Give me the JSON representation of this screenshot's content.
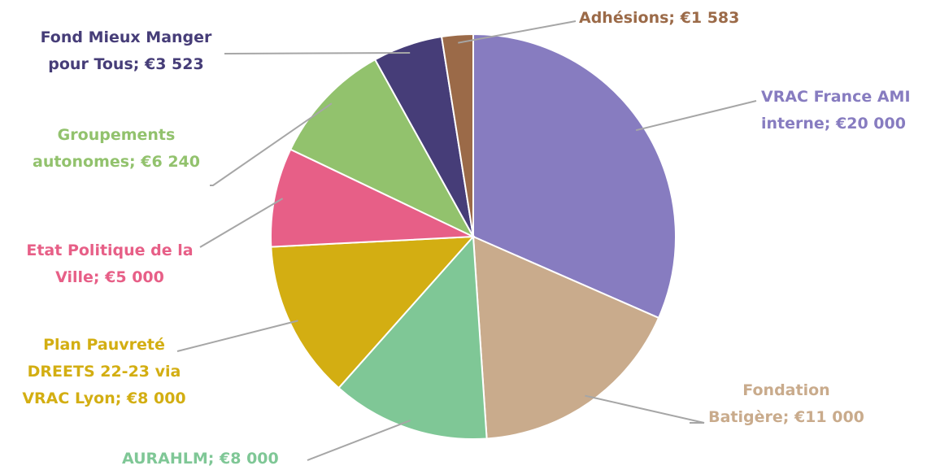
{
  "chart_data": {
    "type": "pie",
    "title": "",
    "slices": [
      {
        "name": "VRAC France AMI interne",
        "value": 20000,
        "label_lines": [
          "VRAC France AMI",
          "interne; €20 000"
        ],
        "color": "#877cc0"
      },
      {
        "name": "Fondation Batigère",
        "value": 11000,
        "label_lines": [
          "Fondation",
          "Batigère; €11 000"
        ],
        "color": "#c9ab8c"
      },
      {
        "name": "AURAHLM",
        "value": 8000,
        "label_lines": [
          "AURAHLM; €8 000"
        ],
        "color": "#7fc796"
      },
      {
        "name": "Plan Pauvreté DREETS 22-23 via VRAC Lyon",
        "value": 8000,
        "label_lines": [
          "Plan Pauvreté",
          "DREETS 22-23 via",
          "VRAC Lyon; €8 000"
        ],
        "color": "#d3ae12"
      },
      {
        "name": "Etat Politique de la Ville",
        "value": 5000,
        "label_lines": [
          "Etat Politique de la",
          "Ville; €5 000"
        ],
        "color": "#e75f87"
      },
      {
        "name": "Groupements autonomes",
        "value": 6240,
        "label_lines": [
          "Groupements",
          "autonomes; €6 240"
        ],
        "color": "#92c26d"
      },
      {
        "name": "Fond Mieux Manger pour Tous",
        "value": 3523,
        "label_lines": [
          "Fond Mieux Manger",
          "pour Tous; €3 523"
        ],
        "color": "#463d78"
      },
      {
        "name": "Adhésions",
        "value": 1583,
        "label_lines": [
          "Adhésions; €1 583"
        ],
        "color": "#9b6a48"
      }
    ],
    "label_colors": [
      "#877cc0",
      "#c9ab8c",
      "#7fc796",
      "#d3ae12",
      "#e75f87",
      "#92c26d",
      "#463d78",
      "#9b6a48"
    ],
    "legend": "none",
    "start_angle": "top",
    "direction": "clockwise"
  }
}
